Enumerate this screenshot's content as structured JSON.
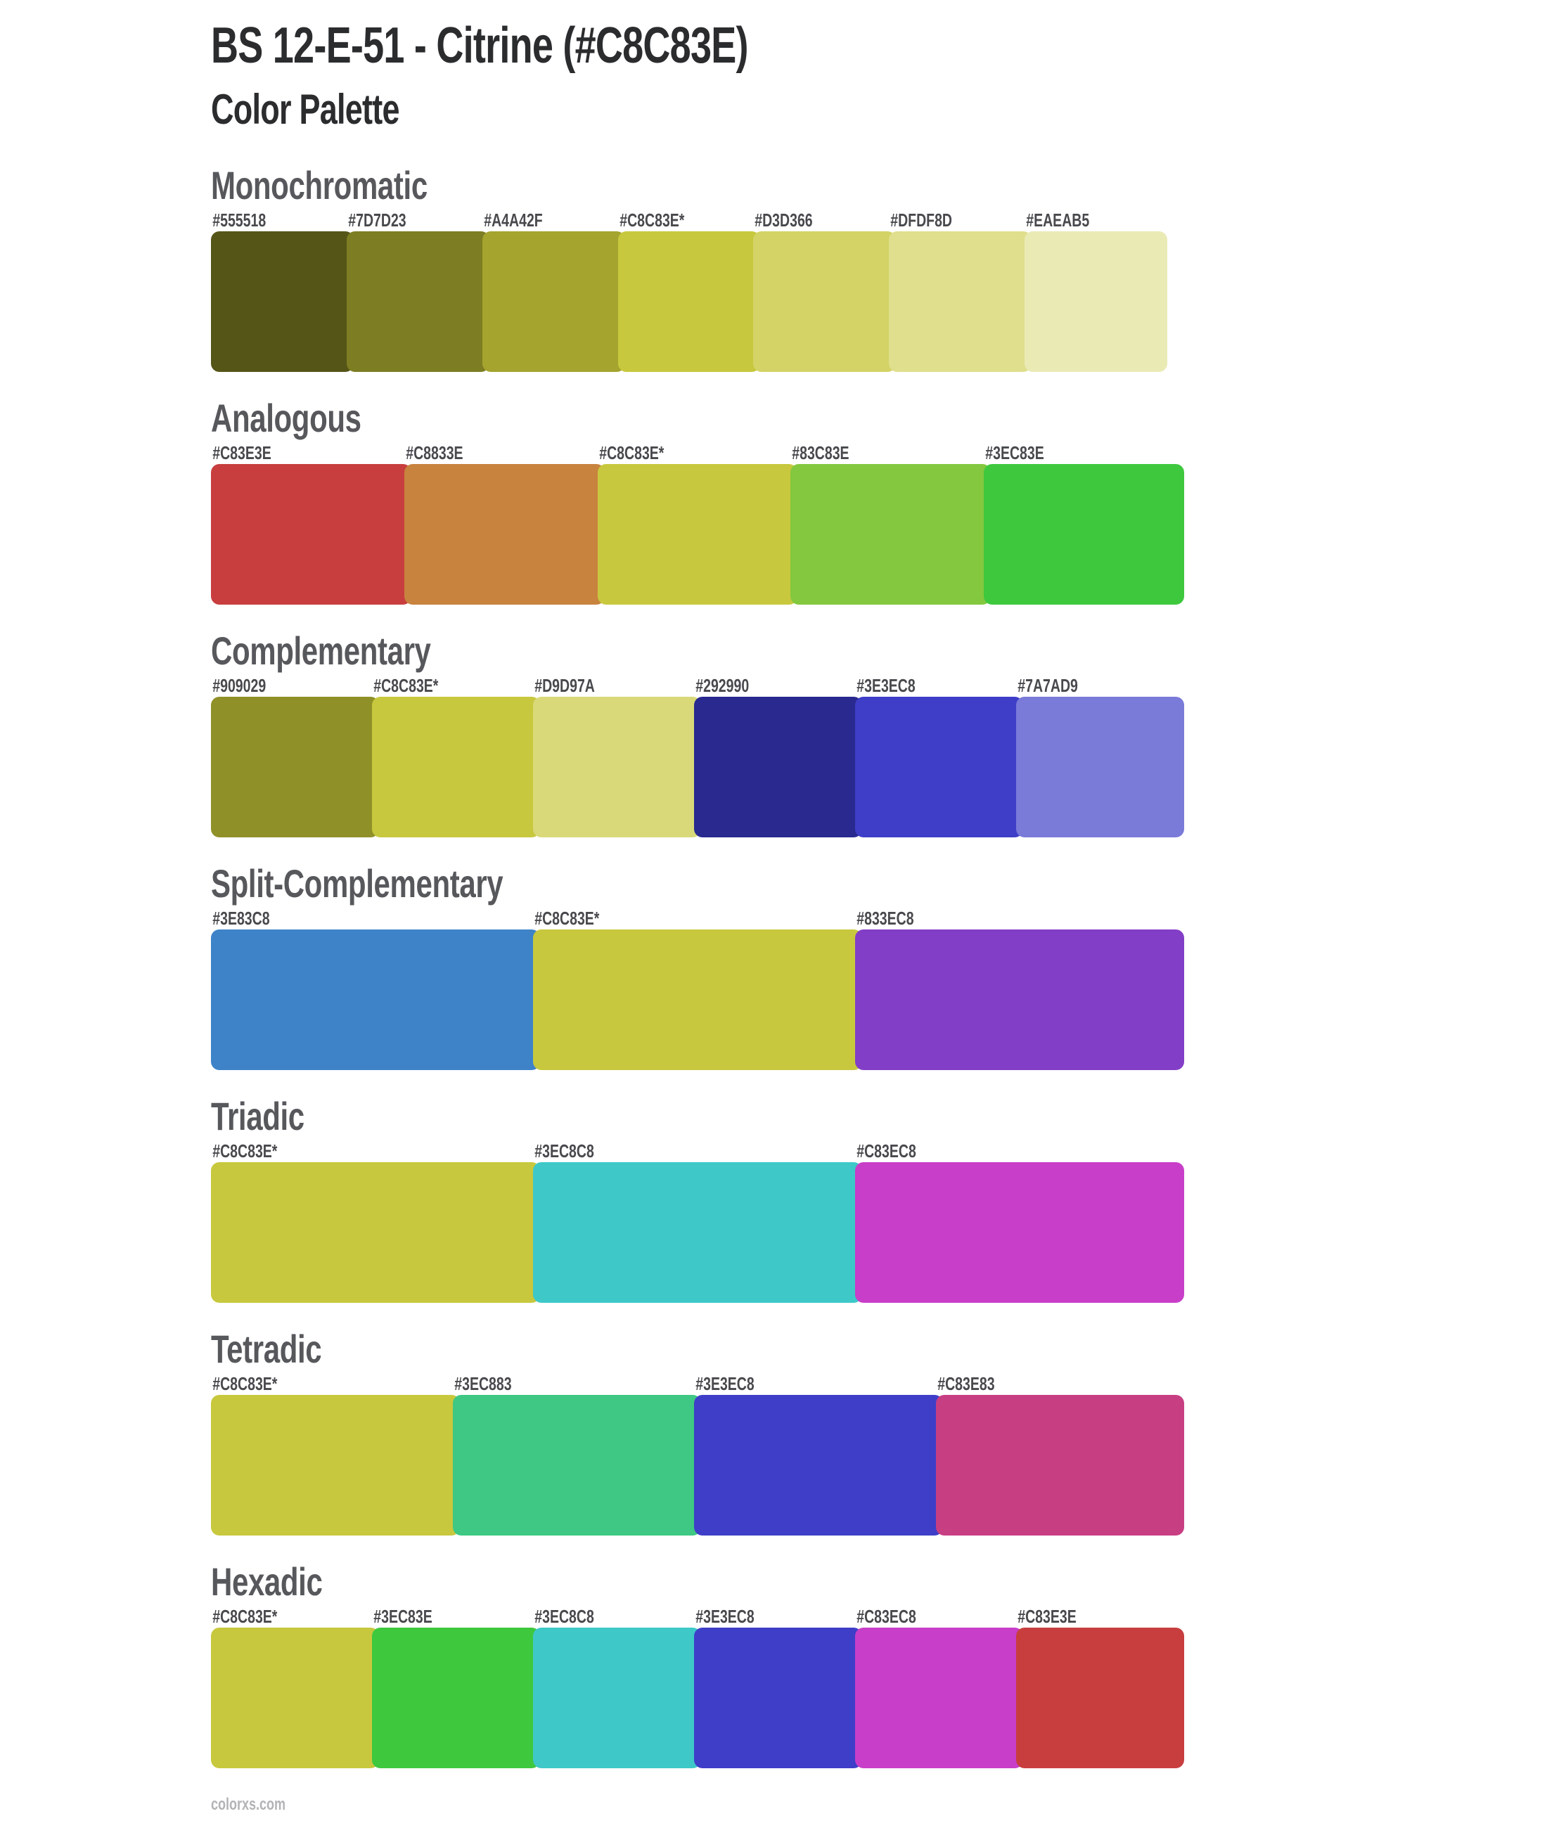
{
  "page": {
    "title": "BS 12-E-51 - Citrine (#C8C83E)",
    "subtitle": "Color Palette",
    "base_color": "#C8C83E",
    "footer_link": "colorxs.com",
    "colors": {
      "title_text": "#2b2c2e",
      "heading_text": "#57585c",
      "label_text": "#48494d",
      "footer_text": "#b2b3b5",
      "background": "#ffffff"
    }
  },
  "sections": [
    {
      "name": "Monochromatic",
      "swatches": [
        {
          "label": "#555518",
          "color": "#555518"
        },
        {
          "label": "#7D7D23",
          "color": "#7D7D23"
        },
        {
          "label": "#A4A42F",
          "color": "#A4A42F"
        },
        {
          "label": "#C8C83E*",
          "color": "#C8C83E"
        },
        {
          "label": "#D3D366",
          "color": "#D3D366"
        },
        {
          "label": "#DFDF8D",
          "color": "#DFDF8D"
        },
        {
          "label": "#EAEAB5",
          "color": "#EAEAB5"
        }
      ]
    },
    {
      "name": "Analogous",
      "swatches": [
        {
          "label": "#C83E3E",
          "color": "#C83E3E"
        },
        {
          "label": "#C8833E",
          "color": "#C8833E"
        },
        {
          "label": "#C8C83E*",
          "color": "#C8C83E"
        },
        {
          "label": "#83C83E",
          "color": "#83C83E"
        },
        {
          "label": "#3EC83E",
          "color": "#3EC83E"
        }
      ]
    },
    {
      "name": "Complementary",
      "swatches": [
        {
          "label": "#909029",
          "color": "#909029"
        },
        {
          "label": "#C8C83E*",
          "color": "#C8C83E"
        },
        {
          "label": "#D9D97A",
          "color": "#D9D97A"
        },
        {
          "label": "#292990",
          "color": "#292990"
        },
        {
          "label": "#3E3EC8",
          "color": "#3E3EC8"
        },
        {
          "label": "#7A7AD9",
          "color": "#7A7AD9"
        }
      ]
    },
    {
      "name": "Split-Complementary",
      "swatches": [
        {
          "label": "#3E83C8",
          "color": "#3E83C8"
        },
        {
          "label": "#C8C83E*",
          "color": "#C8C83E"
        },
        {
          "label": "#833EC8",
          "color": "#833EC8"
        }
      ]
    },
    {
      "name": "Triadic",
      "swatches": [
        {
          "label": "#C8C83E*",
          "color": "#C8C83E"
        },
        {
          "label": "#3EC8C8",
          "color": "#3EC8C8"
        },
        {
          "label": "#C83EC8",
          "color": "#C83EC8"
        }
      ]
    },
    {
      "name": "Tetradic",
      "swatches": [
        {
          "label": "#C8C83E*",
          "color": "#C8C83E"
        },
        {
          "label": "#3EC883",
          "color": "#3EC883"
        },
        {
          "label": "#3E3EC8",
          "color": "#3E3EC8"
        },
        {
          "label": "#C83E83",
          "color": "#C83E83"
        }
      ]
    },
    {
      "name": "Hexadic",
      "swatches": [
        {
          "label": "#C8C83E*",
          "color": "#C8C83E"
        },
        {
          "label": "#3EC83E",
          "color": "#3EC83E"
        },
        {
          "label": "#3EC8C8",
          "color": "#3EC8C8"
        },
        {
          "label": "#3E3EC8",
          "color": "#3E3EC8"
        },
        {
          "label": "#C83EC8",
          "color": "#C83EC8"
        },
        {
          "label": "#C83E3E",
          "color": "#C83E3E"
        }
      ]
    }
  ]
}
